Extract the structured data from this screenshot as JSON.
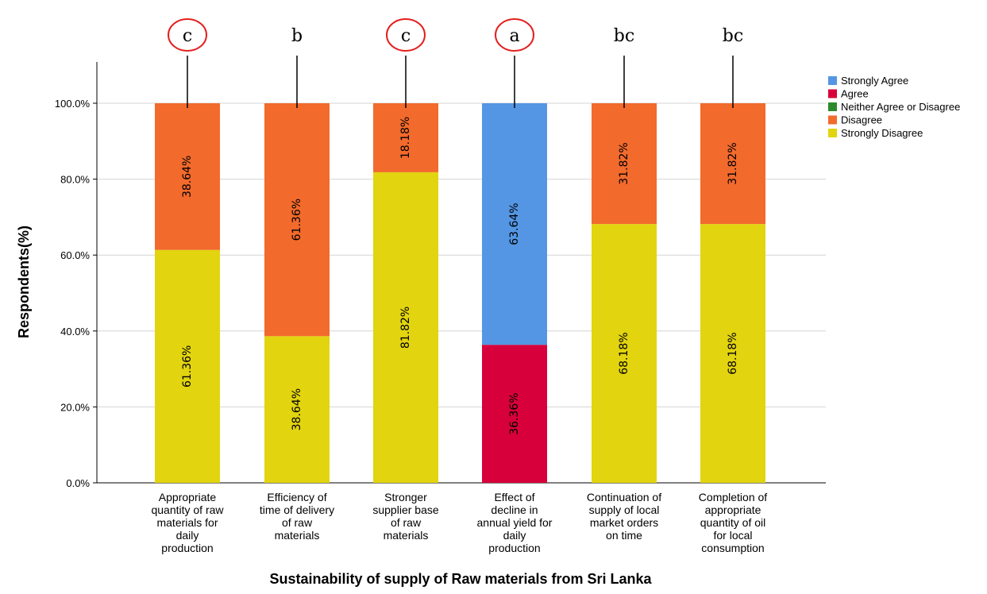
{
  "chart_data": {
    "type": "bar",
    "stacked": true,
    "xlabel": "Sustainability of supply of Raw materials from Sri Lanka",
    "ylabel": "Respondents(%)",
    "ylim": [
      0,
      100
    ],
    "yticks": [
      "0.0%",
      "20.0%",
      "40.0%",
      "60.0%",
      "80.0%",
      "100.0%"
    ],
    "ytick_values": [
      0,
      20,
      40,
      60,
      80,
      100
    ],
    "grid": true,
    "legend_position": "top-right",
    "categories": [
      [
        "Appropriate",
        "quantity of raw",
        "materials for",
        "daily",
        "production"
      ],
      [
        "Efficiency of",
        "time of delivery",
        "of raw",
        "materials"
      ],
      [
        "Stronger",
        "supplier base",
        "of raw",
        "materials"
      ],
      [
        "Effect of",
        "decline in",
        "annual yield for",
        "daily",
        "production"
      ],
      [
        "Continuation of",
        "supply of local",
        "market orders",
        "on time"
      ],
      [
        "Completion of",
        "appropriate",
        "quantity of oil",
        "for local",
        "consumption"
      ]
    ],
    "significance_letters": [
      "c",
      "b",
      "c",
      "a",
      "bc",
      "bc"
    ],
    "significance_circled": [
      true,
      false,
      true,
      true,
      false,
      false
    ],
    "series": [
      {
        "name": "Strongly Agree",
        "color": "#5496e3",
        "values": [
          0,
          0,
          0,
          63.64,
          0,
          0
        ],
        "labels": [
          "",
          "",
          "",
          "63.64%",
          "",
          ""
        ]
      },
      {
        "name": "Agree",
        "color": "#d7003a",
        "values": [
          0,
          0,
          0,
          36.36,
          0,
          0
        ],
        "labels": [
          "",
          "",
          "",
          "36.36%",
          "",
          ""
        ]
      },
      {
        "name": "Neither Agree or Disagree",
        "color": "#2c8a2c",
        "values": [
          0,
          0,
          0,
          0,
          0,
          0
        ],
        "labels": [
          "",
          "",
          "",
          "",
          "",
          ""
        ]
      },
      {
        "name": "Disagree",
        "color": "#f26a2c",
        "values": [
          38.64,
          61.36,
          18.18,
          0,
          31.82,
          31.82
        ],
        "labels": [
          "38.64%",
          "61.36%",
          "18.18%",
          "",
          "31.82%",
          "31.82%"
        ]
      },
      {
        "name": "Strongly Disagree",
        "color": "#e2d40f",
        "values": [
          61.36,
          38.64,
          81.82,
          0,
          68.18,
          68.18
        ],
        "labels": [
          "61.36%",
          "38.64%",
          "81.82%",
          "",
          "68.18%",
          "68.18%"
        ]
      }
    ],
    "stack_order": [
      "Strongly Disagree",
      "Disagree",
      "Neither Agree or Disagree",
      "Agree",
      "Strongly Agree"
    ]
  }
}
